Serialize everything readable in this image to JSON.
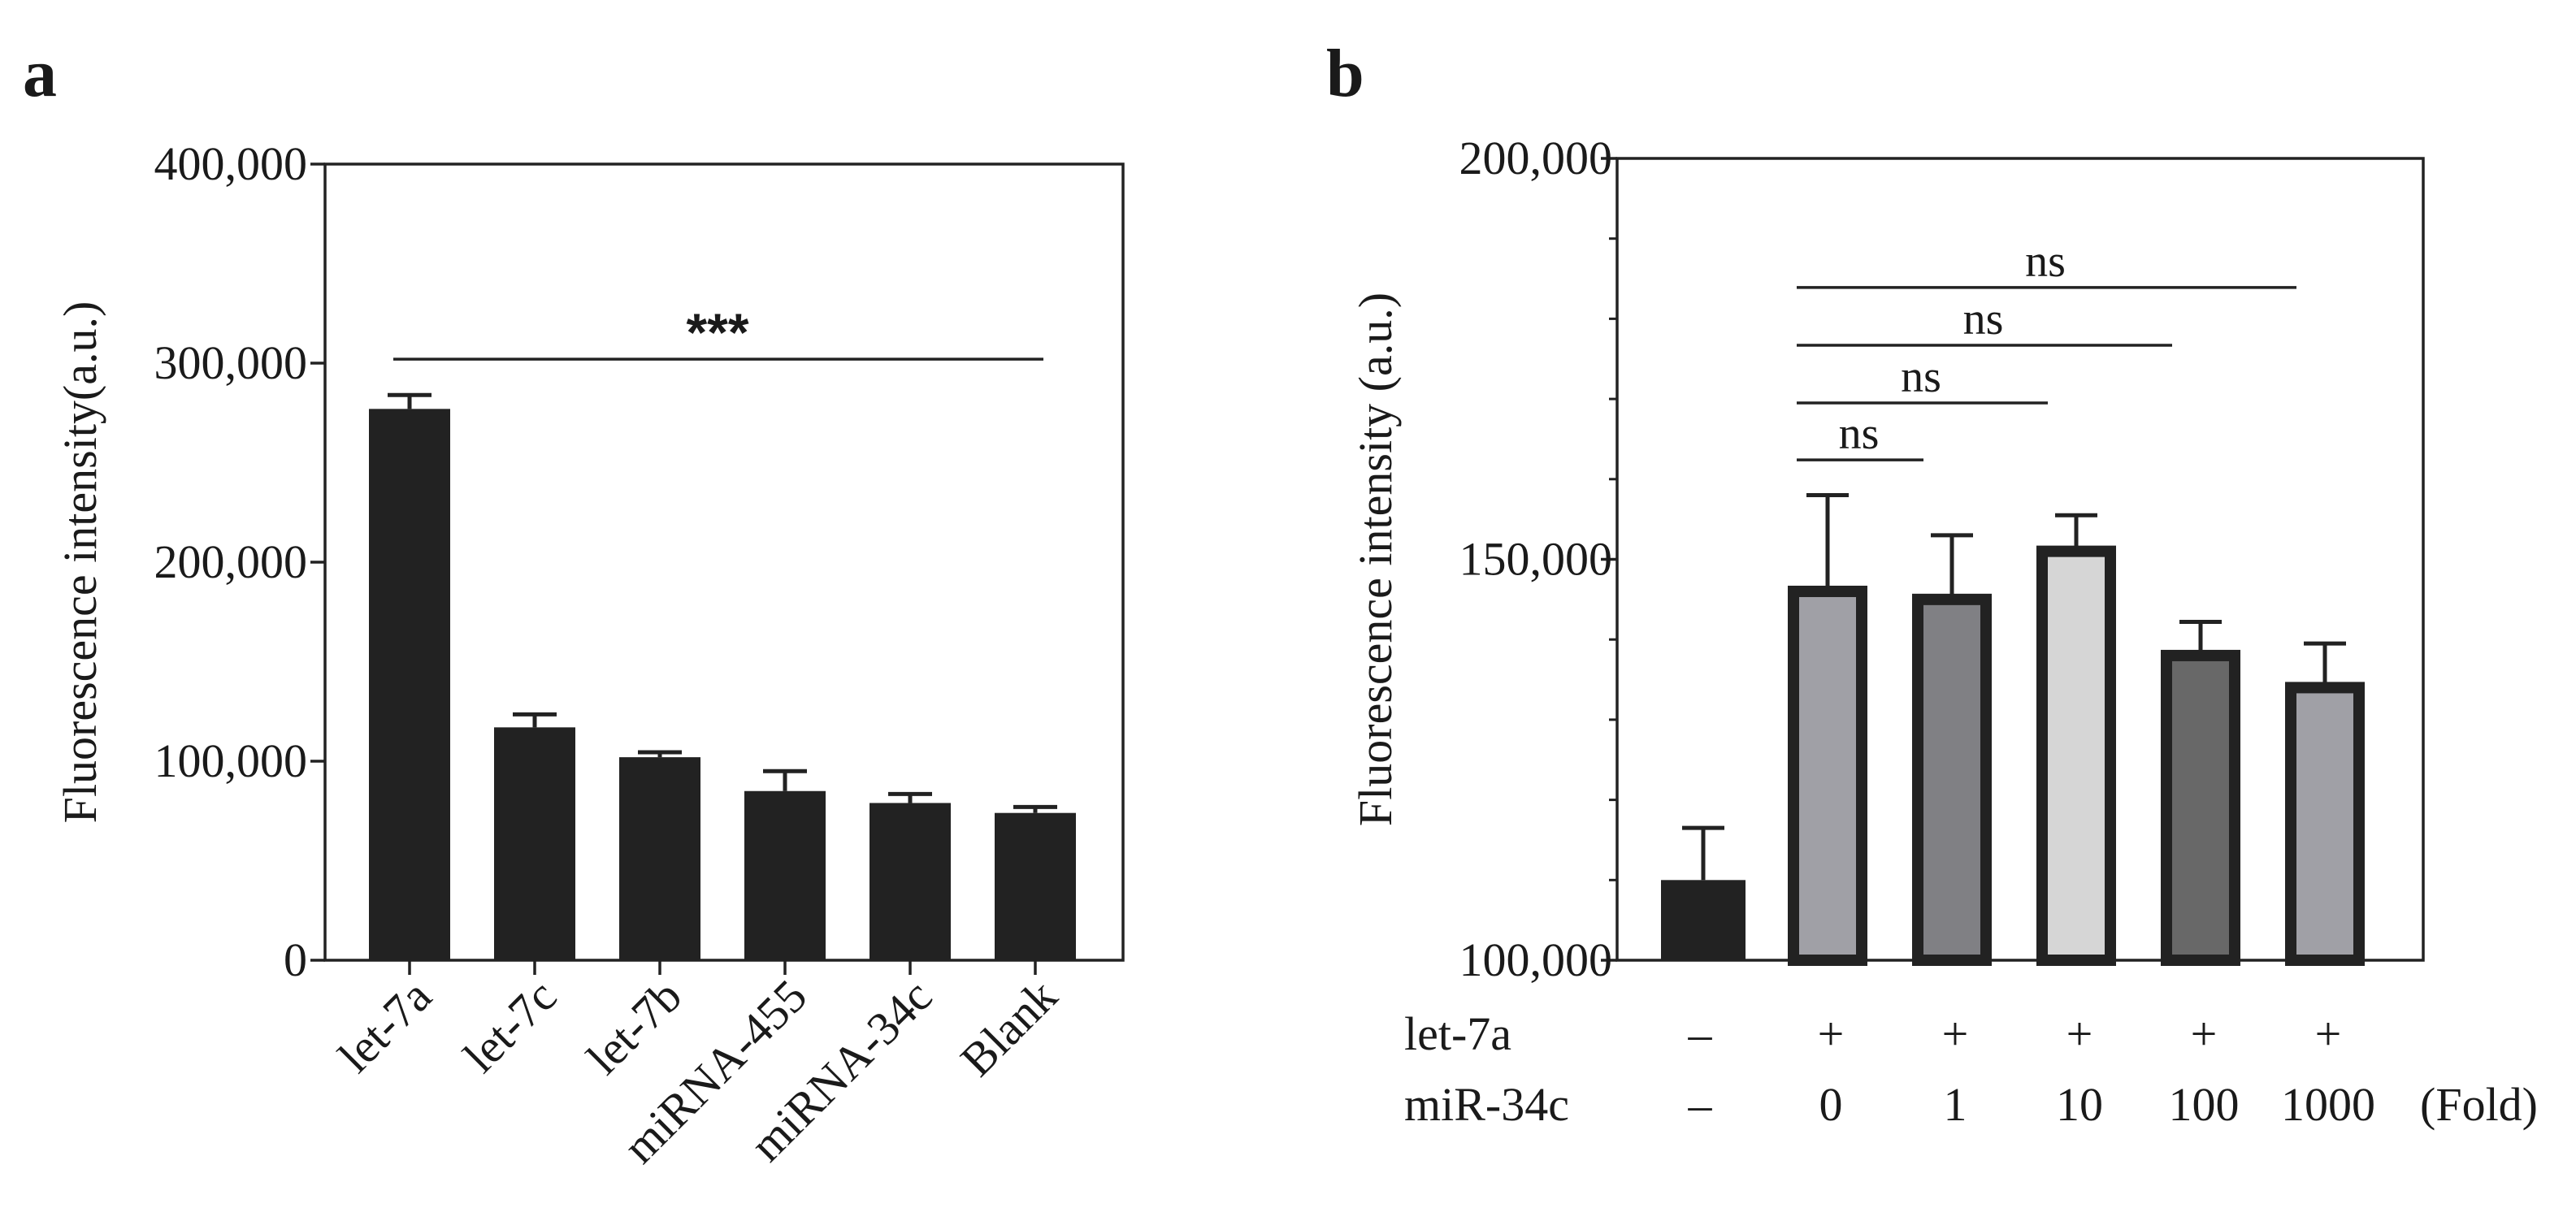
{
  "panels": {
    "a": "a",
    "b": "b"
  },
  "chart_data": [
    {
      "type": "bar",
      "panel": "a",
      "title": "",
      "xlabel": "",
      "ylabel": "Fluorescence intensity(a.u.)",
      "ylim": [
        0,
        400000
      ],
      "yticks": [
        0,
        100000,
        200000,
        300000,
        400000
      ],
      "ytick_labels": [
        "0",
        "100,000",
        "200,000",
        "300,000",
        "400,000"
      ],
      "categories": [
        "let-7a",
        "let-7c",
        "let-7b",
        "miRNA-455",
        "miRNA-34c",
        "Blank"
      ],
      "values": [
        277000,
        117000,
        102000,
        85000,
        79000,
        74000
      ],
      "errors": [
        7000,
        6500,
        2500,
        10000,
        4500,
        3000
      ],
      "bar_color": "#222222",
      "significance": [
        {
          "label": "***",
          "from": 0,
          "to": 5,
          "y": 302000
        }
      ]
    },
    {
      "type": "bar",
      "panel": "b",
      "title": "",
      "xlabel": "",
      "ylabel": "Fluorescence intensity (a.u.)",
      "ylim": [
        100000,
        200000
      ],
      "yticks": [
        100000,
        150000,
        200000
      ],
      "ytick_labels": [
        "100,000",
        "150,000",
        "200,000"
      ],
      "minor_ytick_step": 10000,
      "values": [
        110000,
        146000,
        145000,
        151000,
        138000,
        134000
      ],
      "errors": [
        6500,
        12000,
        8000,
        4500,
        4200,
        5500
      ],
      "fills": [
        "#222222",
        "#a0a0a6",
        "#808084",
        "#d6d6d6",
        "#686868",
        "#a0a0a6"
      ],
      "outline_color": "#222222",
      "condition_rows": [
        {
          "label": "let-7a",
          "values": [
            "–",
            "+",
            "+",
            "+",
            "+",
            "+"
          ],
          "suffix": ""
        },
        {
          "label": "miR-34c",
          "values": [
            "–",
            "0",
            "1",
            "10",
            "100",
            "1000"
          ],
          "suffix": "(Fold)"
        }
      ],
      "significance": [
        {
          "label": "ns",
          "from": 1,
          "to": 2,
          "y": 162400
        },
        {
          "label": "ns",
          "from": 1,
          "to": 3,
          "y": 169500
        },
        {
          "label": "ns",
          "from": 1,
          "to": 4,
          "y": 176700
        },
        {
          "label": "ns",
          "from": 1,
          "to": 5,
          "y": 183900
        }
      ]
    }
  ]
}
